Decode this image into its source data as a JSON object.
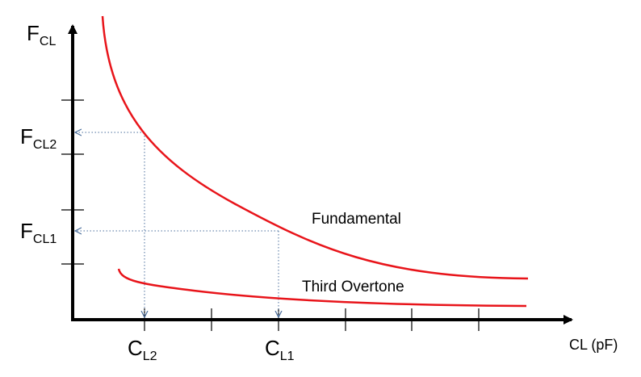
{
  "colors": {
    "curve": "#e8141a",
    "axis": "#000000",
    "guide": "#4a6e9c",
    "background": "#ffffff"
  },
  "y_axis": {
    "label_main": "F",
    "label_sub": "CL"
  },
  "x_axis": {
    "label": "CL (pF)"
  },
  "markers": {
    "fcl2_main": "F",
    "fcl2_sub": "CL2",
    "fcl1_main": "F",
    "fcl1_sub": "CL1",
    "cl2_main": "C",
    "cl2_sub": "L2",
    "cl1_main": "C",
    "cl1_sub": "L1"
  },
  "curves": {
    "fundamental": "Fundamental",
    "third_overtone": "Third Overtone"
  }
}
